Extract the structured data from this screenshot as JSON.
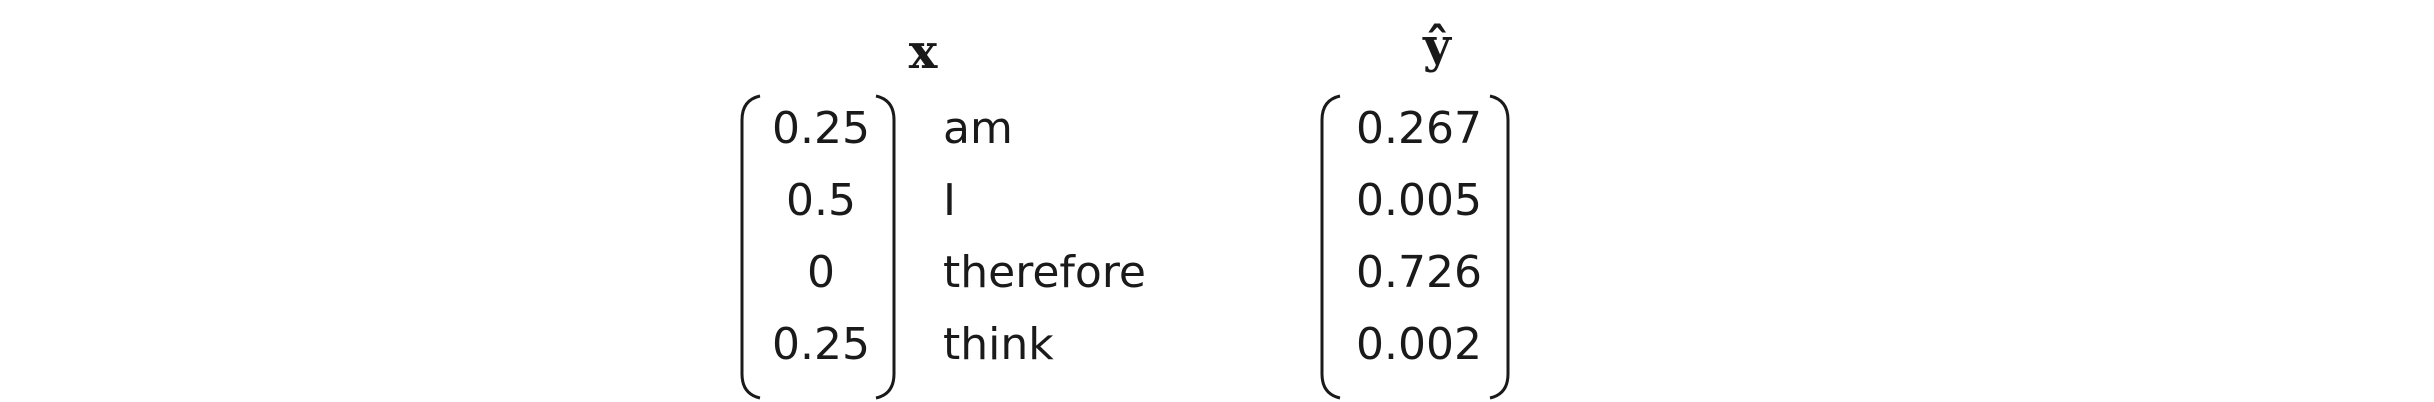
{
  "vectors": {
    "x": {
      "title": "x",
      "entries": [
        "0.25",
        "0.5",
        "0",
        "0.25"
      ]
    },
    "y_hat": {
      "title": "ŷ",
      "entries": [
        "0.267",
        "0.005",
        "0.726",
        "0.002"
      ]
    }
  },
  "vocabulary": {
    "words": [
      "am",
      "I",
      "therefore",
      "think"
    ]
  }
}
